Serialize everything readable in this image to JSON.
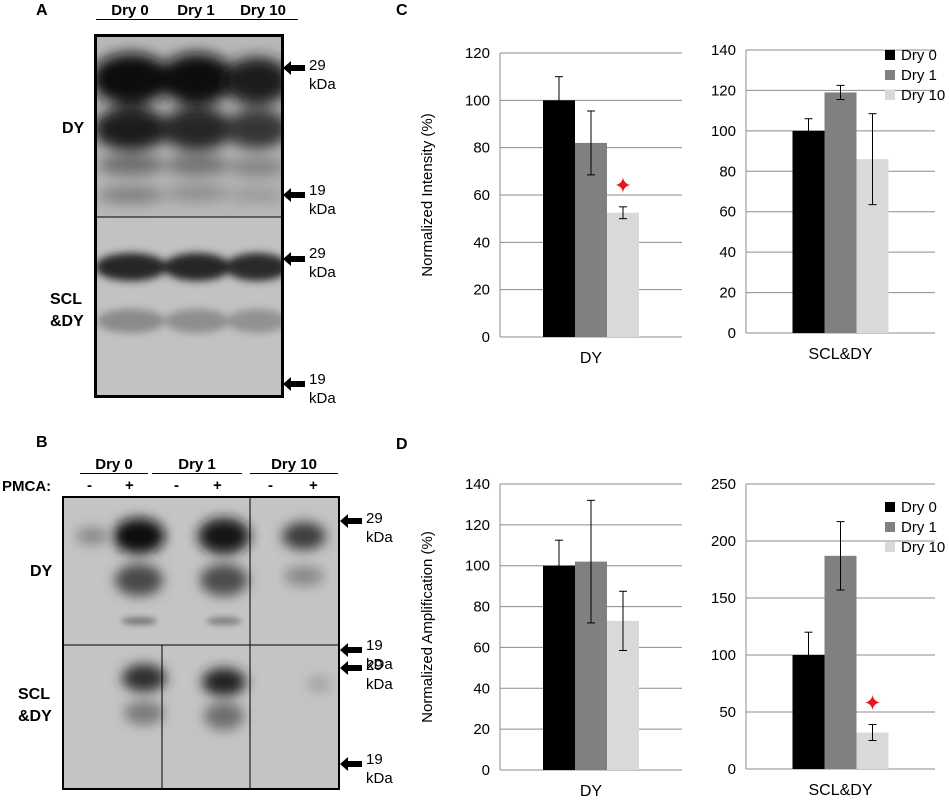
{
  "panels": {
    "a": "A",
    "b": "B",
    "c": "C",
    "d": "D"
  },
  "panel_a": {
    "lanes": [
      "Dry 0",
      "Dry 1",
      "Dry 10"
    ],
    "rows": [
      "DY",
      "SCL\n&DY"
    ],
    "markers": [
      "29\nkDa",
      "19\nkDa",
      "29\nkDa",
      "19\nkDa"
    ]
  },
  "panel_b": {
    "lanes": [
      "Dry 0",
      "Dry 1",
      "Dry 10"
    ],
    "pmca_label": "PMCA:",
    "pmca": [
      "-",
      "+",
      "-",
      "+",
      "-",
      "+"
    ],
    "rows": [
      "DY",
      "SCL\n&DY"
    ],
    "markers": [
      "29\nkDa",
      "19\nkDa",
      "29\nkDa",
      "19\nkDa"
    ]
  },
  "chart_data": [
    {
      "id": "C-left",
      "type": "bar",
      "categories": [
        "DY"
      ],
      "ylabel": "Normalized Intensity (%)",
      "ylim": [
        0,
        120
      ],
      "yticks": [
        0,
        20,
        40,
        60,
        80,
        100,
        120
      ],
      "series": [
        {
          "name": "Dry 0",
          "values": [
            100
          ],
          "err": [
            10
          ],
          "color": "#000000"
        },
        {
          "name": "Dry 1",
          "values": [
            82
          ],
          "err": [
            13.5
          ],
          "color": "#808080"
        },
        {
          "name": "Dry 10",
          "values": [
            52.5
          ],
          "err": [
            2.5
          ],
          "color": "#d9d9d9"
        }
      ],
      "significance": {
        "series": "Dry 10",
        "symbol": "✦",
        "color": "#e8141e"
      },
      "grid": true
    },
    {
      "id": "C-right",
      "type": "bar",
      "categories": [
        "SCL&DY"
      ],
      "ylabel": "",
      "ylim": [
        0,
        140
      ],
      "yticks": [
        0,
        20,
        40,
        60,
        80,
        100,
        120,
        140
      ],
      "series": [
        {
          "name": "Dry 0",
          "values": [
            100
          ],
          "err": [
            6
          ],
          "color": "#000000"
        },
        {
          "name": "Dry 1",
          "values": [
            119
          ],
          "err": [
            3.5
          ],
          "color": "#808080"
        },
        {
          "name": "Dry 10",
          "values": [
            86
          ],
          "err": [
            22.5
          ],
          "color": "#d9d9d9"
        }
      ],
      "legend": "top-right",
      "grid": true
    },
    {
      "id": "D-left",
      "type": "bar",
      "categories": [
        "DY"
      ],
      "ylabel": "Normalized Amplification (%)",
      "ylim": [
        0,
        140
      ],
      "yticks": [
        0,
        20,
        40,
        60,
        80,
        100,
        120,
        140
      ],
      "series": [
        {
          "name": "Dry 0",
          "values": [
            100
          ],
          "err": [
            12.5
          ],
          "color": "#000000"
        },
        {
          "name": "Dry 1",
          "values": [
            102
          ],
          "err": [
            30
          ],
          "color": "#808080"
        },
        {
          "name": "Dry 10",
          "values": [
            73
          ],
          "err": [
            14.5
          ],
          "color": "#d9d9d9"
        }
      ],
      "grid": true
    },
    {
      "id": "D-right",
      "type": "bar",
      "categories": [
        "SCL&DY"
      ],
      "ylabel": "",
      "ylim": [
        0,
        250
      ],
      "yticks": [
        0,
        50,
        100,
        150,
        200,
        250
      ],
      "series": [
        {
          "name": "Dry 0",
          "values": [
            100
          ],
          "err": [
            20
          ],
          "color": "#000000"
        },
        {
          "name": "Dry 1",
          "values": [
            187
          ],
          "err": [
            30
          ],
          "color": "#808080"
        },
        {
          "name": "Dry 10",
          "values": [
            32
          ],
          "err": [
            7
          ],
          "color": "#d9d9d9"
        }
      ],
      "significance": {
        "series": "Dry 10",
        "symbol": "✦",
        "color": "#e8141e"
      },
      "legend": "top-right",
      "grid": true
    }
  ]
}
